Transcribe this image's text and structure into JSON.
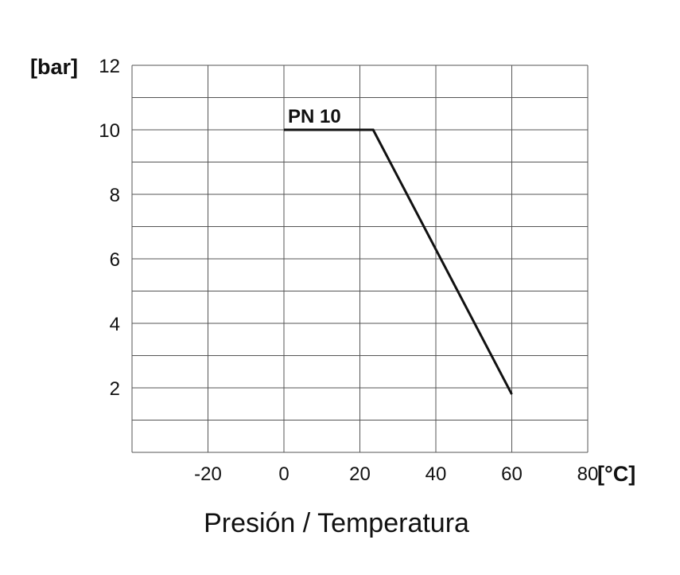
{
  "caption": "Presión / Temperatura",
  "chart_data": {
    "type": "line",
    "title": "",
    "xlabel": "[°C]",
    "ylabel": "[bar]",
    "xlim": [
      -40,
      80
    ],
    "ylim": [
      0,
      12
    ],
    "x_ticks": [
      -20,
      0,
      20,
      40,
      60,
      80
    ],
    "y_ticks": [
      2,
      4,
      6,
      8,
      10,
      12
    ],
    "x_grid": [
      -40,
      -20,
      0,
      20,
      40,
      60,
      80
    ],
    "y_grid": [
      0,
      1,
      2,
      3,
      4,
      5,
      6,
      7,
      8,
      9,
      10,
      11,
      12
    ],
    "grid": true,
    "series": [
      {
        "name": "PN 10",
        "x": [
          0,
          23.5,
          60
        ],
        "y": [
          10,
          10,
          1.8
        ]
      }
    ],
    "colors": {
      "line": "#111111",
      "grid": "#555555",
      "axis": "#444444"
    }
  }
}
